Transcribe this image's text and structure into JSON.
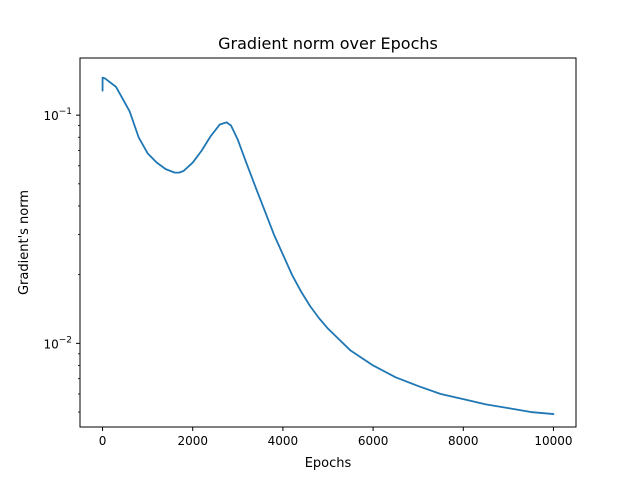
{
  "chart_data": {
    "type": "line",
    "title": "Gradient norm over Epochs",
    "xlabel": "Epochs",
    "ylabel": "Gradient's norm",
    "xlim": [
      -500,
      10500
    ],
    "ylim": [
      0.0043,
      0.178
    ],
    "yscale": "log",
    "grid": false,
    "x_ticks": [
      0,
      2000,
      4000,
      6000,
      8000,
      10000
    ],
    "x_tick_labels": [
      "0",
      "2000",
      "4000",
      "6000",
      "8000",
      "10000"
    ],
    "y_ticks": [
      0.01,
      0.1
    ],
    "y_tick_labels": [
      {
        "base": "10",
        "exp": "−2"
      },
      {
        "base": "10",
        "exp": "−1"
      }
    ],
    "y_minor_ticks": [
      0.005,
      0.006,
      0.007,
      0.008,
      0.009,
      0.02,
      0.03,
      0.04,
      0.05,
      0.06,
      0.07,
      0.08,
      0.09
    ],
    "series": [
      {
        "color": "#1f77b4",
        "x": [
          0,
          1,
          50,
          300,
          600,
          800,
          1000,
          1200,
          1400,
          1600,
          1700,
          1800,
          2000,
          2200,
          2400,
          2600,
          2750,
          2850,
          3000,
          3200,
          3400,
          3600,
          3800,
          4000,
          4200,
          4400,
          4600,
          4800,
          5000,
          5500,
          6000,
          6500,
          7000,
          7500,
          8000,
          8500,
          9000,
          9500,
          10000
        ],
        "y": [
          0.128,
          0.146,
          0.145,
          0.133,
          0.104,
          0.08,
          0.068,
          0.062,
          0.058,
          0.056,
          0.056,
          0.057,
          0.062,
          0.07,
          0.081,
          0.091,
          0.093,
          0.09,
          0.078,
          0.061,
          0.048,
          0.038,
          0.03,
          0.0245,
          0.02,
          0.0169,
          0.0146,
          0.0129,
          0.0116,
          0.0093,
          0.008,
          0.0071,
          0.0065,
          0.006,
          0.0057,
          0.0054,
          0.0052,
          0.005,
          0.0049
        ]
      }
    ]
  }
}
